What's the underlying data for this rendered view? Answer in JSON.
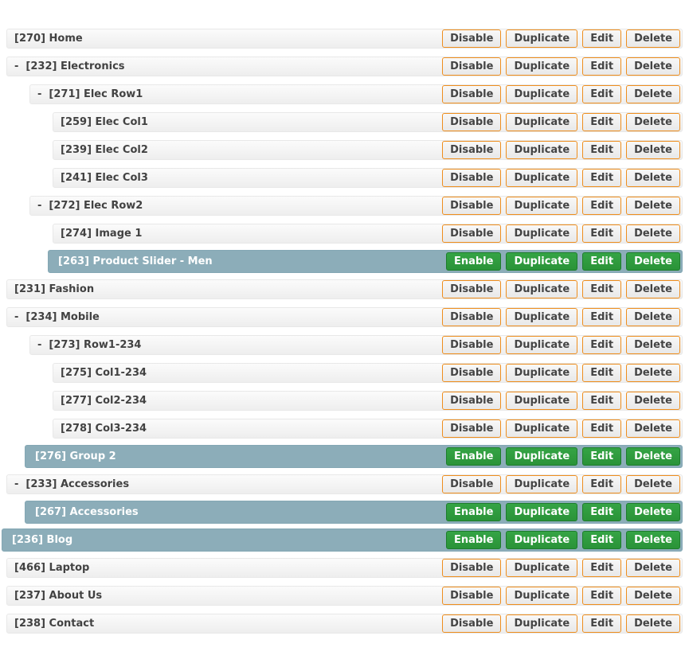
{
  "palette": {
    "page_bg": "#ffffff",
    "row_bg_top": "#fbfbfb",
    "row_bg_bottom": "#eeeeee",
    "row_border": "#e8e8e8",
    "row_text": "#424242",
    "disabled_row_bg": "#8cadb9",
    "disabled_row_border": "#84a7b4",
    "disabled_row_text": "#ffffff",
    "btn_border_orange": "#ee8e1e",
    "btn_bg_top": "#f8f8f8",
    "btn_bg_bottom": "#e8e8e8",
    "btn_text": "#444444",
    "btn_green_top": "#35a445",
    "btn_green_bottom": "#2a9338",
    "btn_green_border": "#1d7d2c",
    "btn_green_text": "#ffffff"
  },
  "buttons": {
    "disable": "Disable",
    "enable": "Enable",
    "duplicate": "Duplicate",
    "edit": "Edit",
    "delete": "Delete"
  },
  "tree": {
    "collapse_glyph": "-",
    "rows": [
      {
        "label": "[270] Home",
        "level": 0,
        "has_children": false,
        "status": "enabled"
      },
      {
        "label": "[232] Electronics",
        "level": 0,
        "has_children": true,
        "status": "enabled"
      },
      {
        "label": "[271] Elec Row1",
        "level": 1,
        "has_children": true,
        "status": "enabled"
      },
      {
        "label": "[259] Elec Col1",
        "level": 2,
        "has_children": false,
        "status": "enabled"
      },
      {
        "label": "[239] Elec Col2",
        "level": 2,
        "has_children": false,
        "status": "enabled"
      },
      {
        "label": "[241] Elec Col3",
        "level": 2,
        "has_children": false,
        "status": "enabled"
      },
      {
        "label": "[272] Elec Row2",
        "level": 1,
        "has_children": true,
        "status": "enabled"
      },
      {
        "label": "[274] Image 1",
        "level": 2,
        "has_children": false,
        "status": "enabled"
      },
      {
        "label": "[263] Product Slider - Men",
        "level": 2,
        "has_children": false,
        "status": "disabled"
      },
      {
        "label": "[231] Fashion",
        "level": 0,
        "has_children": false,
        "status": "enabled"
      },
      {
        "label": "[234] Mobile",
        "level": 0,
        "has_children": true,
        "status": "enabled"
      },
      {
        "label": "[273] Row1-234",
        "level": 1,
        "has_children": true,
        "status": "enabled"
      },
      {
        "label": "[275] Col1-234",
        "level": 2,
        "has_children": false,
        "status": "enabled"
      },
      {
        "label": "[277] Col2-234",
        "level": 2,
        "has_children": false,
        "status": "enabled"
      },
      {
        "label": "[278] Col3-234",
        "level": 2,
        "has_children": false,
        "status": "enabled"
      },
      {
        "label": "[276] Group 2",
        "level": 1,
        "has_children": false,
        "status": "disabled"
      },
      {
        "label": "[233] Accessories",
        "level": 0,
        "has_children": true,
        "status": "enabled"
      },
      {
        "label": "[267] Accessories",
        "level": 1,
        "has_children": false,
        "status": "disabled"
      },
      {
        "label": "[236] Blog",
        "level": 0,
        "has_children": false,
        "status": "disabled"
      },
      {
        "label": "[466] Laptop",
        "level": 0,
        "has_children": false,
        "status": "enabled"
      },
      {
        "label": "[237] About Us",
        "level": 0,
        "has_children": false,
        "status": "enabled"
      },
      {
        "label": "[238] Contact",
        "level": 0,
        "has_children": false,
        "status": "enabled"
      }
    ]
  }
}
